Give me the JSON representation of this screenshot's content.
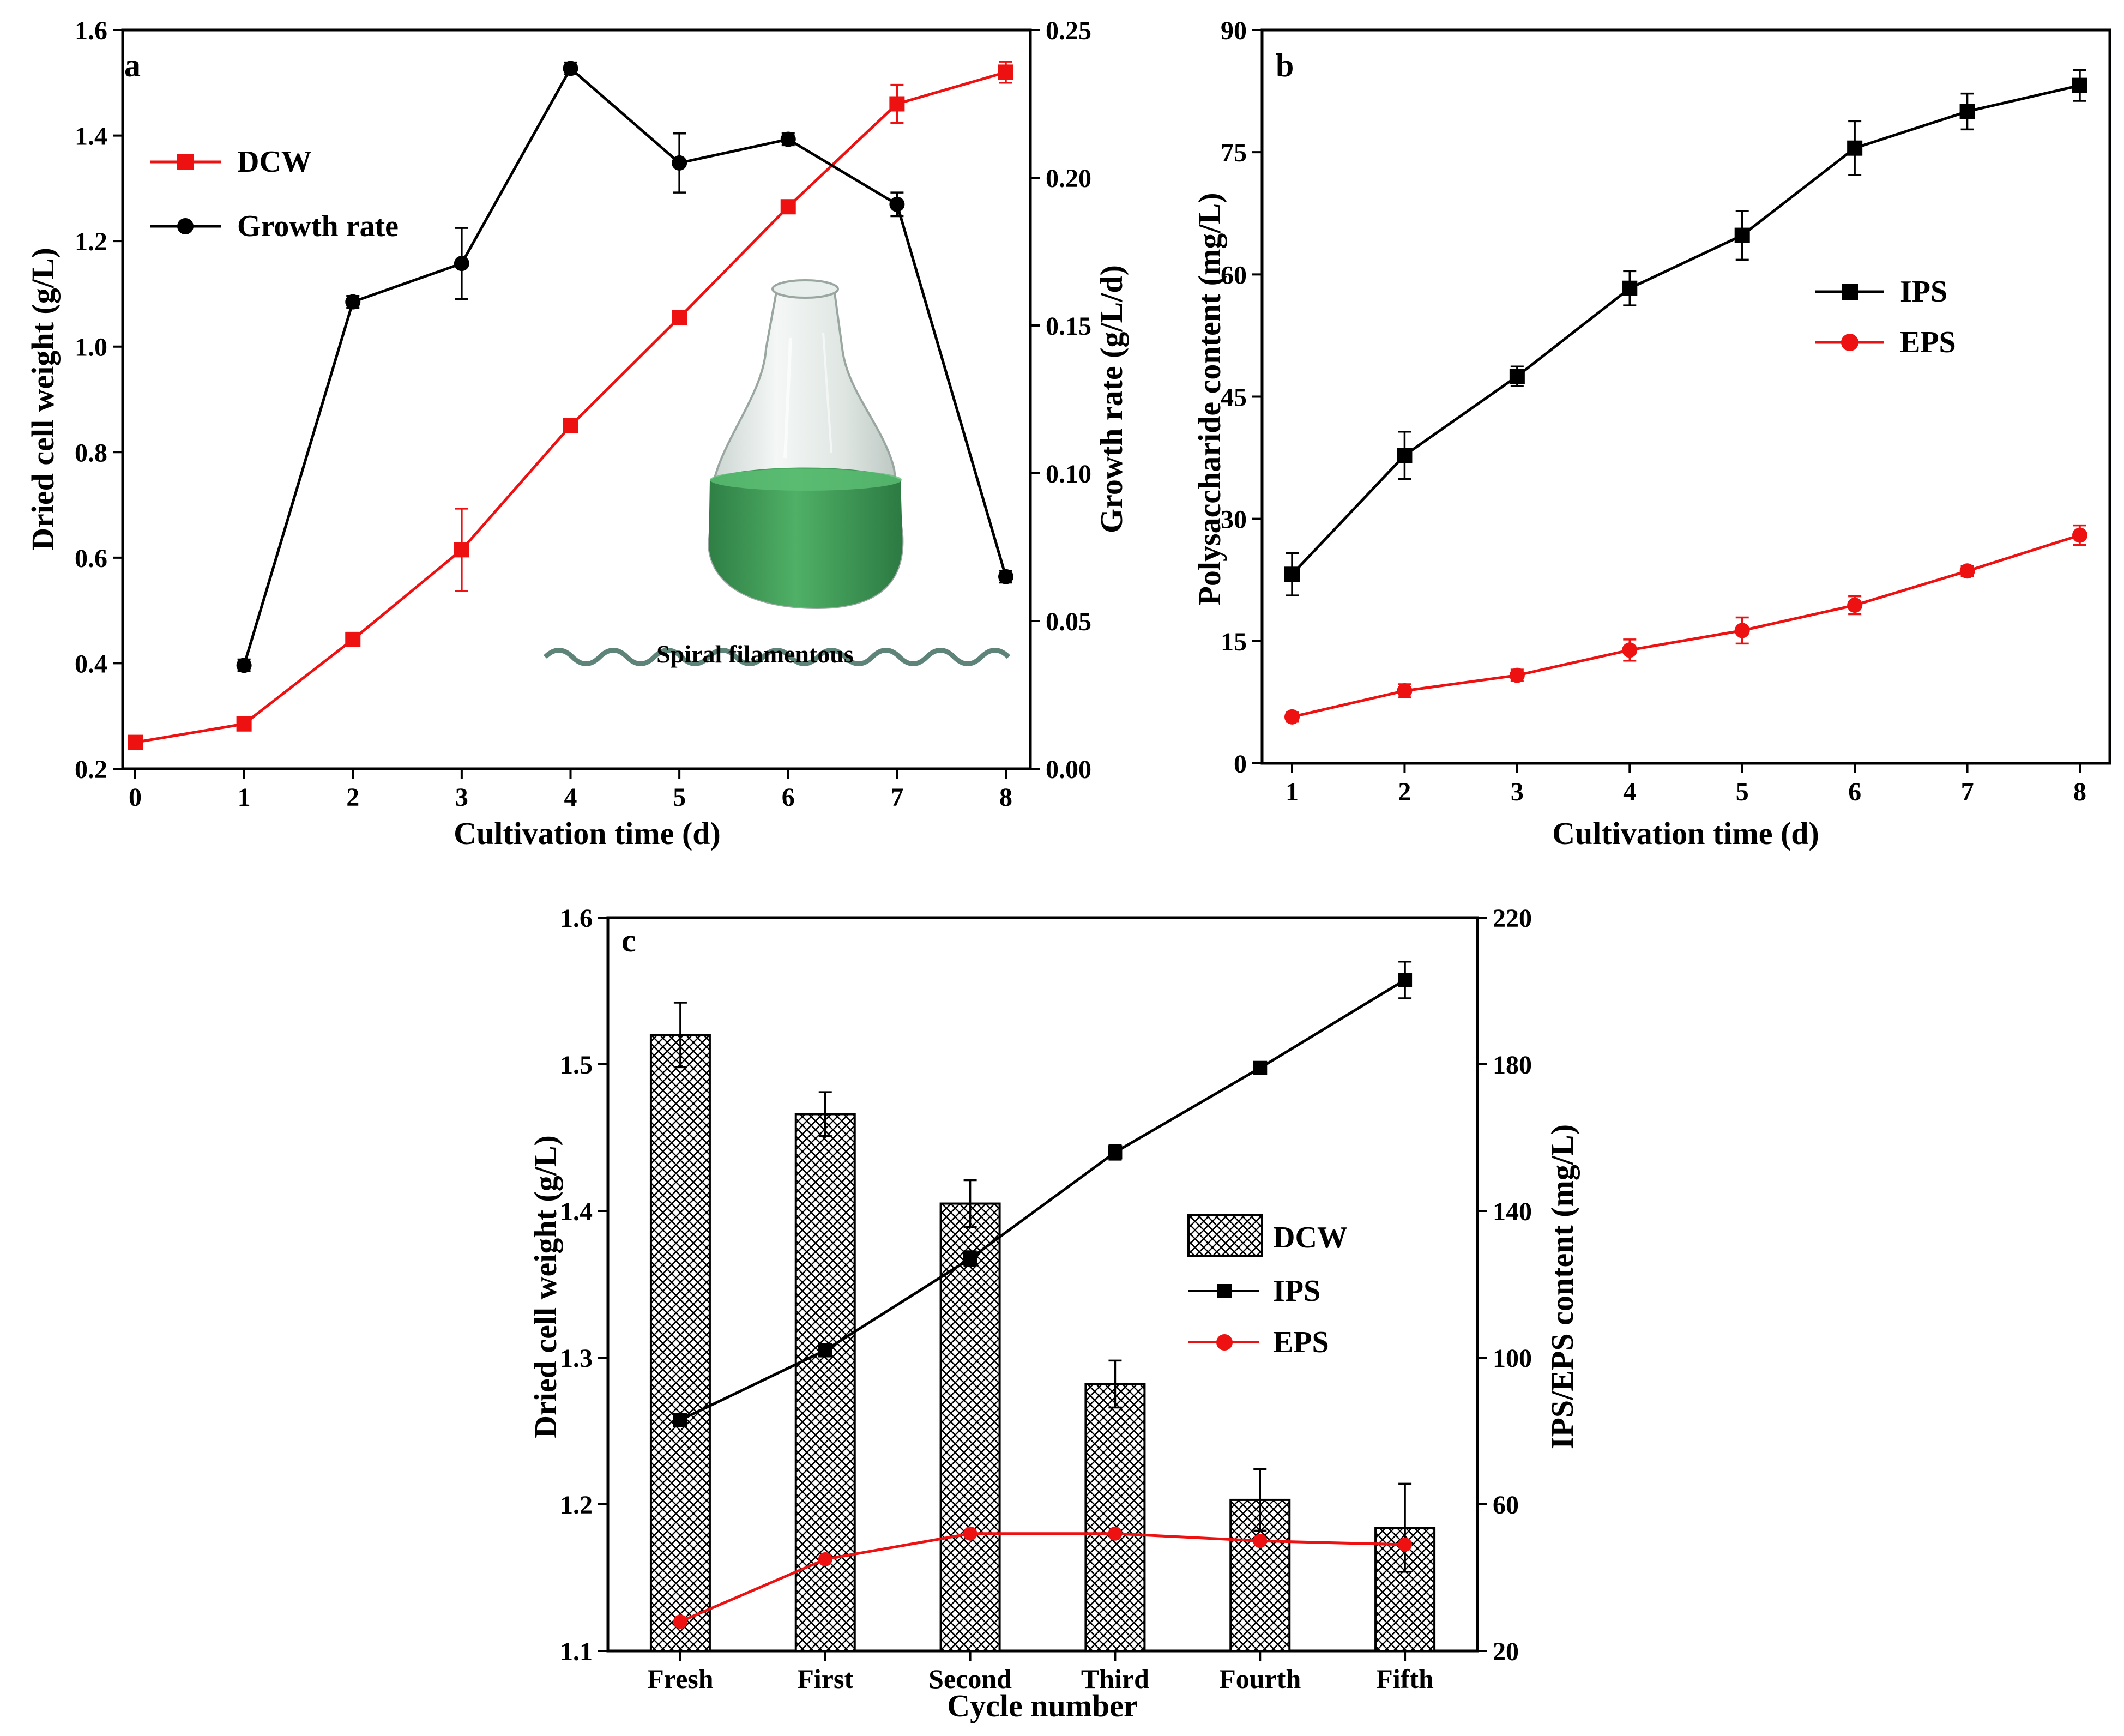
{
  "figure": {
    "photo_caption": "Spiral filamentous",
    "colors": {
      "red": "#ee1111",
      "black": "#000000",
      "flask_glass": "#dfe6e2",
      "culture": "#3f9d57",
      "spiral": "#5e8378"
    }
  },
  "chart_data": [
    {
      "id": "a",
      "type": "line",
      "panel_label": "a",
      "xlabel": "Cultivation time (d)",
      "ylabel": "Dried cell weight (g/L)",
      "ylabel_right": "Growth rate (g/L/d)",
      "xlim": [
        0,
        8
      ],
      "ylim": [
        0.2,
        1.6
      ],
      "ylim_right": [
        0.0,
        0.25
      ],
      "x_ticks": [
        "0",
        "1",
        "2",
        "3",
        "4",
        "5",
        "6",
        "7",
        "8"
      ],
      "y_ticks": [
        "0.2",
        "0.4",
        "0.6",
        "0.8",
        "1.0",
        "1.2",
        "1.4",
        "1.6"
      ],
      "y_ticks_right": [
        "0.00",
        "0.05",
        "0.10",
        "0.15",
        "0.20",
        "0.25"
      ],
      "legend_position": "top-left",
      "series": [
        {
          "name": "DCW",
          "axis": "left",
          "marker": "square",
          "color": "#ee1111",
          "x": [
            0,
            1,
            2,
            3,
            4,
            5,
            6,
            7,
            8
          ],
          "values": [
            0.25,
            0.285,
            0.445,
            0.615,
            0.85,
            1.055,
            1.265,
            1.46,
            1.52
          ],
          "errors": [
            0.005,
            0.008,
            0.008,
            0.078,
            0.01,
            0.01,
            0.01,
            0.036,
            0.02
          ]
        },
        {
          "name": "Growth rate",
          "axis": "right",
          "marker": "circle",
          "color": "#000000",
          "x": [
            1,
            2,
            3,
            4,
            5,
            6,
            7,
            8
          ],
          "values": [
            0.035,
            0.158,
            0.171,
            0.237,
            0.205,
            0.213,
            0.191,
            0.065
          ],
          "errors": [
            0.002,
            0.002,
            0.012,
            0.002,
            0.01,
            0.002,
            0.004,
            0.002
          ]
        }
      ]
    },
    {
      "id": "b",
      "type": "line",
      "panel_label": "b",
      "xlabel": "Cultivation time (d)",
      "ylabel": "Polysaccharide content (mg/L)",
      "xlim": [
        1,
        8
      ],
      "ylim": [
        0,
        90
      ],
      "x_ticks": [
        "1",
        "2",
        "3",
        "4",
        "5",
        "6",
        "7",
        "8"
      ],
      "y_ticks": [
        "0",
        "15",
        "30",
        "45",
        "60",
        "75",
        "90"
      ],
      "legend_position": "center-right",
      "series": [
        {
          "name": "IPS",
          "marker": "square",
          "color": "#000000",
          "x": [
            1,
            2,
            3,
            4,
            5,
            6,
            7,
            8
          ],
          "values": [
            23.2,
            37.8,
            47.5,
            58.3,
            64.8,
            75.5,
            80.0,
            83.2
          ],
          "errors": [
            2.6,
            2.9,
            1.2,
            2.1,
            3.0,
            3.3,
            2.2,
            1.9
          ]
        },
        {
          "name": "EPS",
          "marker": "circle",
          "color": "#ee1111",
          "x": [
            1,
            2,
            3,
            4,
            5,
            6,
            7,
            8
          ],
          "values": [
            5.7,
            8.9,
            10.8,
            13.9,
            16.3,
            19.4,
            23.6,
            28.0
          ],
          "errors": [
            0.6,
            0.8,
            0.7,
            1.3,
            1.6,
            1.1,
            0.6,
            1.2
          ]
        }
      ]
    },
    {
      "id": "c",
      "type": "bar",
      "panel_label": "c",
      "xlabel": "Cycle number",
      "ylabel": "Dried cell weight (g/L)",
      "ylabel_right": "IPS/EPS content (mg/L)",
      "categories": [
        "Fresh",
        "First",
        "Second",
        "Third",
        "Fourth",
        "Fifth"
      ],
      "ylim": [
        1.1,
        1.6
      ],
      "ylim_right": [
        20,
        220
      ],
      "y_ticks": [
        "1.1",
        "1.2",
        "1.3",
        "1.4",
        "1.5",
        "1.6"
      ],
      "y_ticks_right": [
        "20",
        "60",
        "100",
        "140",
        "180",
        "220"
      ],
      "legend_position": "center-right",
      "bars": {
        "name": "DCW",
        "axis": "left",
        "pattern": "crosshatch",
        "values": [
          1.52,
          1.466,
          1.405,
          1.282,
          1.203,
          1.184
        ],
        "errors": [
          0.022,
          0.015,
          0.016,
          0.016,
          0.021,
          0.03
        ]
      },
      "series": [
        {
          "name": "IPS",
          "axis": "right",
          "marker": "square",
          "color": "#000000",
          "values": [
            83,
            102,
            127,
            156,
            179,
            203
          ],
          "errors": [
            1,
            1,
            2,
            2,
            1,
            5
          ]
        },
        {
          "name": "EPS",
          "axis": "right",
          "marker": "circle",
          "color": "#ee1111",
          "values": [
            28,
            45,
            52,
            52,
            50,
            49
          ],
          "errors": [
            0.5,
            0.5,
            0.5,
            0.5,
            0.5,
            0.5
          ]
        }
      ]
    }
  ]
}
